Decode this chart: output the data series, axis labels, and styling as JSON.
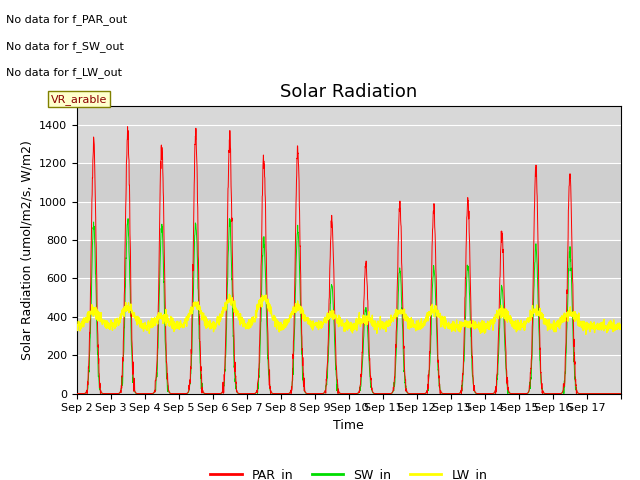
{
  "title": "Solar Radiation",
  "ylabel": "Solar Radiation (umol/m2/s, W/m2)",
  "xlabel": "Time",
  "ylim": [
    0,
    1500
  ],
  "background_color": "#ffffff",
  "plot_bg_color": "#d8d8d8",
  "annotations": [
    "No data for f_PAR_out",
    "No data for f_SW_out",
    "No data for f_LW_out"
  ],
  "vr_label": "VR_arable",
  "line_colors": {
    "PAR_in": "#ff0000",
    "SW_in": "#00dd00",
    "LW_in": "#ffff00"
  },
  "days": [
    "Sep 2",
    "Sep 3",
    "Sep 4",
    "Sep 5",
    "Sep 6",
    "Sep 7",
    "Sep 8",
    "Sep 9",
    "Sep 10",
    "Sep 11",
    "Sep 12",
    "Sep 13",
    "Sep 14",
    "Sep 15",
    "Sep 16",
    "Sep 17"
  ],
  "par_peaks": [
    1310,
    1370,
    1310,
    1340,
    1330,
    1230,
    1275,
    910,
    670,
    980,
    970,
    1000,
    840,
    1160,
    1130,
    0
  ],
  "sw_peaks": [
    870,
    895,
    870,
    890,
    890,
    810,
    860,
    570,
    440,
    650,
    655,
    670,
    550,
    770,
    745,
    0
  ],
  "lw_baseline": 350,
  "lw_daytime_peaks": [
    430,
    450,
    400,
    460,
    490,
    500,
    450,
    410,
    390,
    430,
    430,
    360,
    430,
    430,
    420,
    350
  ],
  "title_fontsize": 13,
  "axis_fontsize": 9,
  "tick_fontsize": 8
}
